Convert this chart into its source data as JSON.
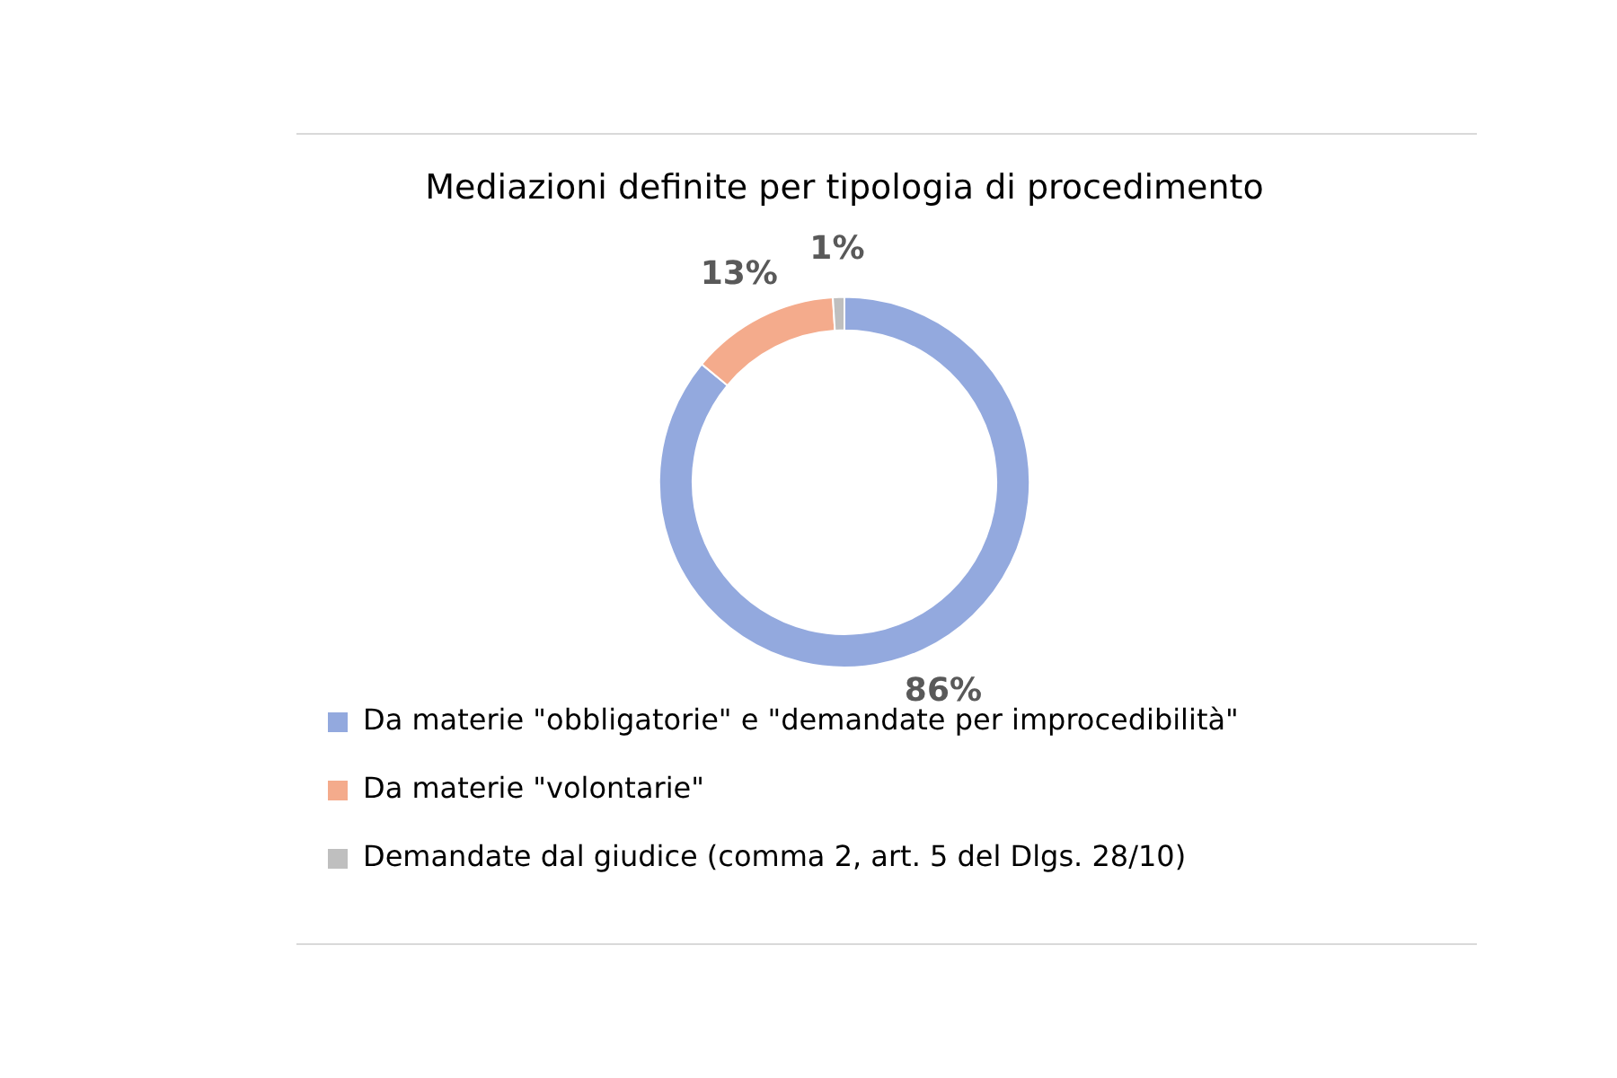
{
  "chart_data": {
    "type": "donut",
    "title": "Mediazioni definite per tipologia di procedimento",
    "categories": [
      "Da materie \"obbligatorie\" e \"demandate per improcedibilità\"",
      "Da materie \"volontarie\"",
      "Demandate dal giudice (comma 2, art. 5 del Dlgs. 28/10)"
    ],
    "values": [
      86,
      13,
      1
    ],
    "colors": [
      "#93a9de",
      "#f4ab8c",
      "#bfbfbf"
    ],
    "value_labels": [
      "86%",
      "13%",
      "1%"
    ],
    "legend": "bottom"
  }
}
